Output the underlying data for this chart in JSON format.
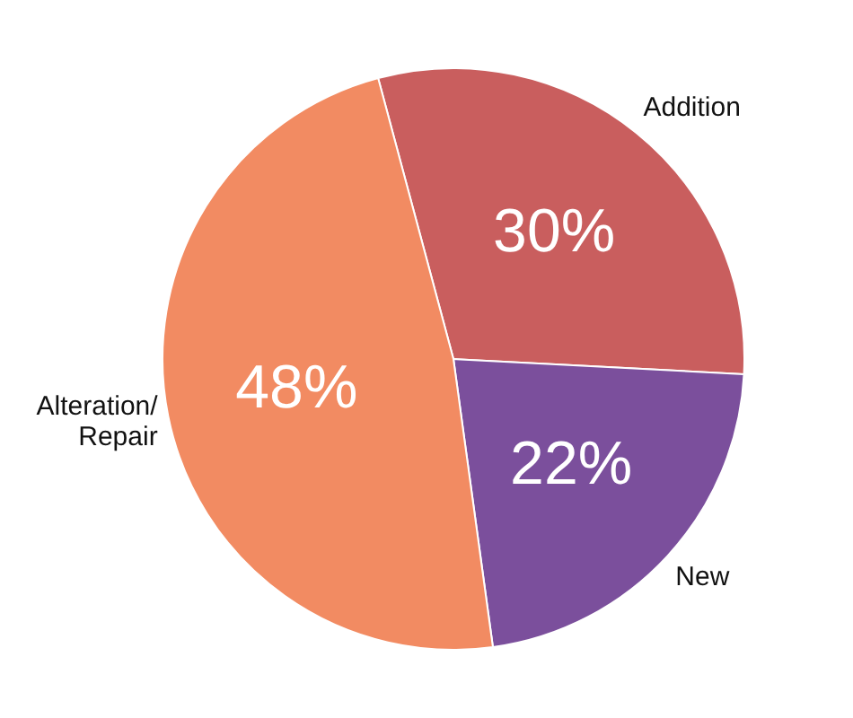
{
  "chart_data": {
    "type": "pie",
    "categories": [
      "Addition",
      "New",
      "Alteration/ Repair"
    ],
    "values": [
      30,
      22,
      48
    ],
    "colors": [
      "#c95e5e",
      "#7b4f9c",
      "#f28b62"
    ],
    "value_labels": [
      "30%",
      "22%",
      "48%"
    ],
    "legend": false
  }
}
